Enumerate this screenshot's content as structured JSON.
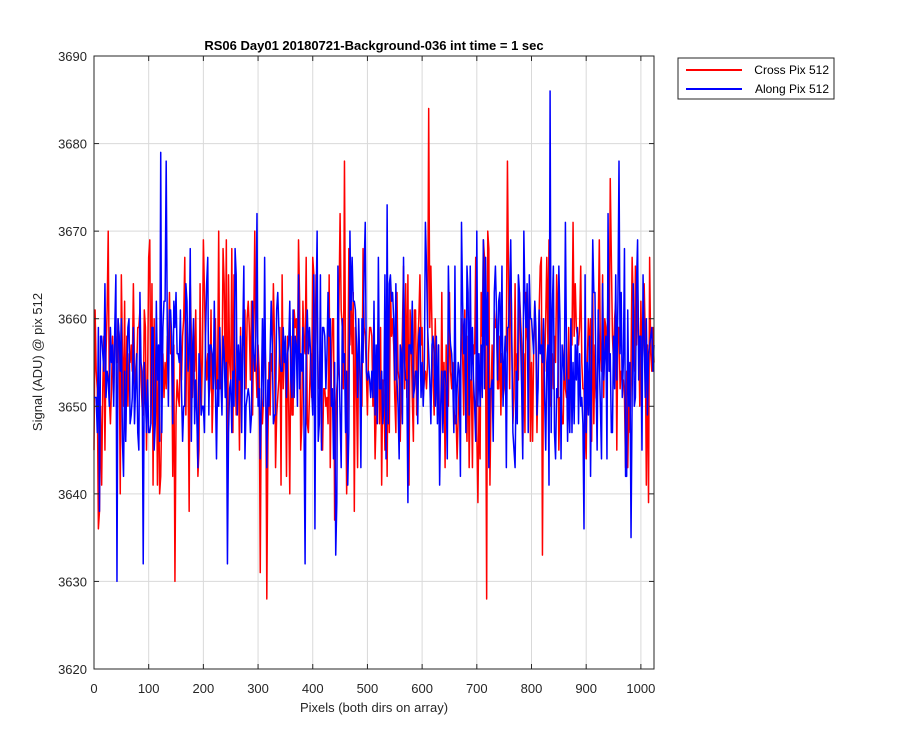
{
  "chart_data": {
    "type": "line",
    "title": "RS06 Day01 20180721-Background-036 int time = 1 sec",
    "xlabel": "Pixels (both dirs on array)",
    "ylabel": "Signal (ADU) @ pix 512",
    "xlim": [
      0,
      1024
    ],
    "ylim": [
      3620,
      3690
    ],
    "x_ticks": [
      "0",
      "100",
      "200",
      "300",
      "400",
      "500",
      "600",
      "700",
      "800",
      "900",
      "1000"
    ],
    "y_ticks": [
      "3620",
      "3630",
      "3640",
      "3650",
      "3660",
      "3670",
      "3680",
      "3690"
    ],
    "grid": true,
    "legend_position": "outside-top-right",
    "approx_mean": 3655,
    "approx_std": 7,
    "series": [
      {
        "name": "Cross Pix 512",
        "color": "#ff0000",
        "x_range": [
          0,
          1024
        ],
        "approx_min": 3628,
        "approx_max": 3684,
        "notable_points": [
          [
            10,
            3638
          ],
          [
            148,
            3630
          ],
          [
            305,
            3631
          ],
          [
            316,
            3628
          ],
          [
            612,
            3684
          ],
          [
            718,
            3628
          ],
          [
            757,
            3678
          ],
          [
            820,
            3633
          ]
        ]
      },
      {
        "name": "Along Pix 512",
        "color": "#0000ff",
        "x_range": [
          0,
          1024
        ],
        "approx_min": 3630,
        "approx_max": 3686,
        "notable_points": [
          [
            42,
            3630
          ],
          [
            122,
            3679
          ],
          [
            132,
            3678
          ],
          [
            245,
            3632
          ],
          [
            442,
            3633
          ],
          [
            835,
            3686
          ],
          [
            960,
            3678
          ],
          [
            983,
            3635
          ]
        ]
      }
    ]
  }
}
